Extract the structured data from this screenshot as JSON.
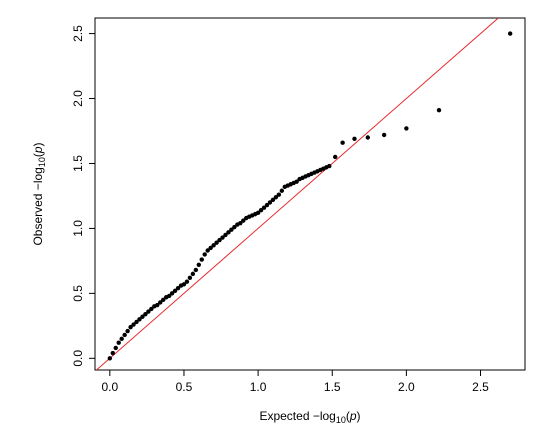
{
  "chart_data": {
    "type": "scatter",
    "title": "",
    "xlabel": {
      "prefix": "Expected  −log",
      "sub": "10",
      "open": "(",
      "var": "p",
      "close": ")"
    },
    "ylabel": {
      "prefix": "Observed  −log",
      "sub": "10",
      "open": "(",
      "var": "p",
      "close": ")"
    },
    "xlim": [
      -0.1,
      2.8
    ],
    "ylim": [
      -0.09,
      2.62
    ],
    "xticks": [
      0.0,
      0.5,
      1.0,
      1.5,
      2.0,
      2.5
    ],
    "xtick_labels": [
      "0.0",
      "0.5",
      "1.0",
      "1.5",
      "2.0",
      "2.5"
    ],
    "yticks": [
      0.0,
      0.5,
      1.0,
      1.5,
      2.0,
      2.5
    ],
    "ytick_labels": [
      "0.0",
      "0.5",
      "1.0",
      "1.5",
      "2.0",
      "2.5"
    ],
    "grid": false,
    "reference_line": {
      "slope": 1,
      "intercept": 0,
      "color": "#e8262a"
    },
    "point_color": "#000000",
    "series": [
      {
        "x": [
          0.0,
          0.02,
          0.04,
          0.06,
          0.08,
          0.1,
          0.12,
          0.14,
          0.16,
          0.18,
          0.2,
          0.22,
          0.24,
          0.26,
          0.28,
          0.3,
          0.32,
          0.34,
          0.36,
          0.38,
          0.4,
          0.42,
          0.44,
          0.46,
          0.48,
          0.5,
          0.52,
          0.54,
          0.56,
          0.58,
          0.6,
          0.62,
          0.64,
          0.66,
          0.68,
          0.7,
          0.72,
          0.74,
          0.76,
          0.78,
          0.8,
          0.82,
          0.84,
          0.86,
          0.88,
          0.9,
          0.92,
          0.94,
          0.96,
          0.98,
          1.0,
          1.02,
          1.04,
          1.06,
          1.08,
          1.1,
          1.12,
          1.14,
          1.16,
          1.18,
          1.2,
          1.22,
          1.24,
          1.26,
          1.28,
          1.3,
          1.32,
          1.34,
          1.36,
          1.38,
          1.4,
          1.42,
          1.44,
          1.46,
          1.48,
          1.52,
          1.57,
          1.65,
          1.74,
          1.85,
          2.0,
          2.22,
          2.7
        ],
        "y": [
          0.0,
          0.04,
          0.08,
          0.12,
          0.15,
          0.18,
          0.21,
          0.24,
          0.26,
          0.28,
          0.3,
          0.32,
          0.34,
          0.36,
          0.38,
          0.4,
          0.41,
          0.43,
          0.45,
          0.47,
          0.48,
          0.5,
          0.52,
          0.54,
          0.56,
          0.57,
          0.59,
          0.62,
          0.65,
          0.68,
          0.72,
          0.76,
          0.8,
          0.83,
          0.85,
          0.87,
          0.89,
          0.91,
          0.93,
          0.95,
          0.97,
          0.99,
          1.01,
          1.03,
          1.04,
          1.06,
          1.08,
          1.09,
          1.1,
          1.11,
          1.12,
          1.14,
          1.16,
          1.18,
          1.2,
          1.22,
          1.24,
          1.26,
          1.29,
          1.32,
          1.33,
          1.34,
          1.35,
          1.36,
          1.38,
          1.39,
          1.4,
          1.41,
          1.42,
          1.43,
          1.44,
          1.45,
          1.46,
          1.47,
          1.48,
          1.55,
          1.66,
          1.69,
          1.7,
          1.72,
          1.77,
          1.91,
          2.5
        ]
      }
    ]
  }
}
